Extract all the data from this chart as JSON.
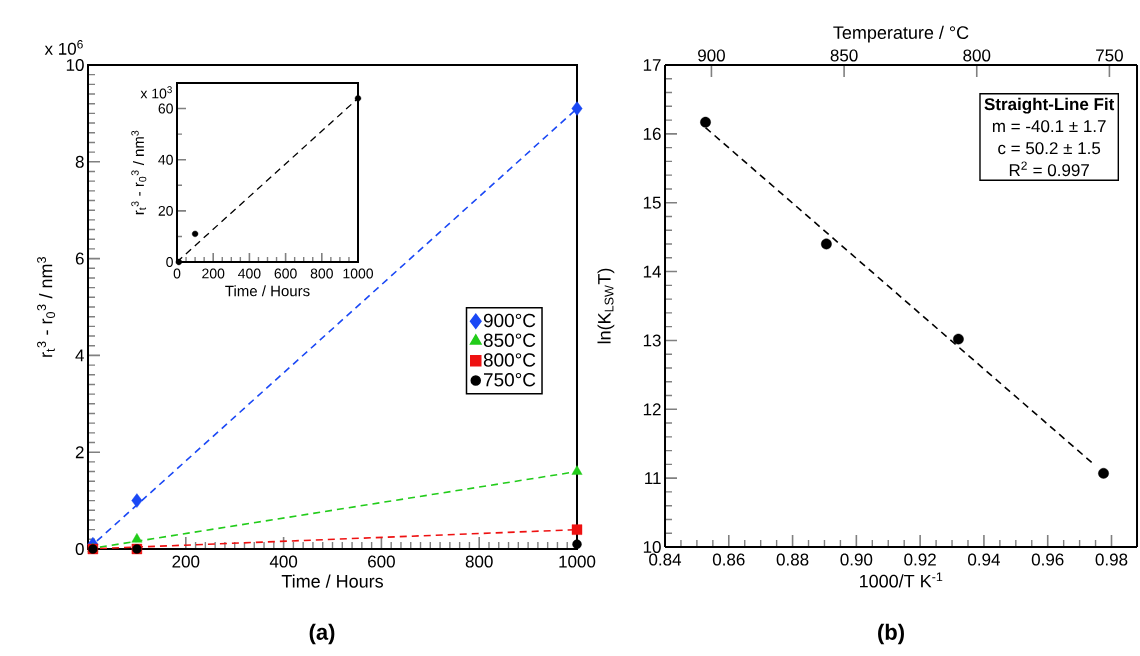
{
  "chart_data": [
    {
      "type": "scatter",
      "xlabel": "Time / Hours",
      "ylabel": "r$_{t}$$^{3}$ - r$_{0}$$^{3}$ / nm$^{3}$",
      "xlim": [
        0,
        1000
      ],
      "xticks": [
        200,
        400,
        600,
        800,
        1000
      ],
      "ylim": [
        0,
        10
      ],
      "yticks": [
        0,
        2,
        4,
        6,
        8,
        10
      ],
      "legend": "right",
      "grid": false,
      "annotations": [
        "x 10$^{6}$",
        "(a)"
      ],
      "series": [
        {
          "name": "900°C",
          "color": "#1a48f5",
          "marker": "diamond",
          "x": [
            10,
            100,
            1000
          ],
          "values": [
            0.1,
            1.0,
            9.1
          ]
        },
        {
          "name": "850°C",
          "color": "#22cc1a",
          "marker": "triangle",
          "x": [
            10,
            100,
            1000
          ],
          "values": [
            0,
            0.2,
            1.6
          ]
        },
        {
          "name": "800°C",
          "color": "#ee1111",
          "marker": "square",
          "x": [
            10,
            100,
            1000
          ],
          "values": [
            0,
            0,
            0.4
          ]
        },
        {
          "name": "750°C",
          "color": "#000000",
          "marker": "circle",
          "x": [
            10,
            100,
            1000
          ],
          "values": [
            0,
            0,
            0.1
          ]
        },
        {
          "type": "line",
          "color": "#1a48f5",
          "marker": "none",
          "line_style": "dashed",
          "x": [
            0,
            1000
          ],
          "values": [
            0,
            9.1
          ]
        },
        {
          "type": "line",
          "color": "#22cc1a",
          "marker": "none",
          "line_style": "dashed",
          "x": [
            0,
            1000
          ],
          "values": [
            0,
            1.6
          ]
        },
        {
          "type": "line",
          "color": "#ee1111",
          "marker": "none",
          "line_style": "dashed",
          "x": [
            0,
            1000
          ],
          "values": [
            0,
            0.4
          ]
        }
      ]
    },
    {
      "type": "scatter",
      "xlabel": "Time / Hours",
      "ylabel": "r$_{t}$$^{3}$ - r$_{0}$$^{3}$ / nm$^{3}$",
      "xlim": [
        0,
        1000
      ],
      "xticks": [
        0,
        200,
        400,
        600,
        800,
        1000
      ],
      "ylim": [
        0,
        70
      ],
      "yticks": [
        0,
        20,
        40,
        60
      ],
      "grid": false,
      "annotations": [
        "x 10$^{3}$"
      ],
      "series": [
        {
          "color": "#000000",
          "marker": "circle",
          "x": [
            10,
            100,
            1000
          ],
          "values": [
            0,
            11,
            64
          ]
        },
        {
          "type": "line",
          "color": "#000000",
          "marker": "none",
          "line_style": "dashed",
          "x": [
            0,
            1000
          ],
          "values": [
            0,
            64
          ]
        }
      ]
    },
    {
      "type": "scatter",
      "xlabel": "1000/T K$^{-1}$",
      "ylabel": "ln(K$_{LSW}$T)",
      "x2label": "Temperature / °C",
      "xlim": [
        0.84,
        0.988
      ],
      "xticks": [
        0.84,
        0.86,
        0.88,
        {
          "value": 0.9,
          "label": "0.90"
        },
        0.92,
        0.94,
        0.96,
        0.98
      ],
      "x2lim": [
        917.5,
        739.6
      ],
      "x2ticks": [
        900,
        850,
        800,
        750
      ],
      "ylim": [
        10,
        17
      ],
      "yticks": [
        10,
        11,
        12,
        13,
        14,
        15,
        16,
        17
      ],
      "grid": false,
      "annotations": [
        "Straight-Line Fit",
        "m = -40.1 ± 1.7",
        "c = 50.2 ± 1.5",
        "R$^{2}$ = 0.997",
        "(b)"
      ],
      "series": [
        {
          "color": "#000000",
          "marker": "circle",
          "x": [
            0.8527,
            0.8906,
            0.932,
            0.9775
          ],
          "values": [
            16.17,
            14.4,
            13.02,
            11.07
          ]
        },
        {
          "type": "line",
          "color": "#000000",
          "marker": "none",
          "line_style": "dashed",
          "x": [
            0.8527,
            0.9745
          ],
          "values": [
            16.09,
            11.2
          ]
        }
      ]
    }
  ]
}
